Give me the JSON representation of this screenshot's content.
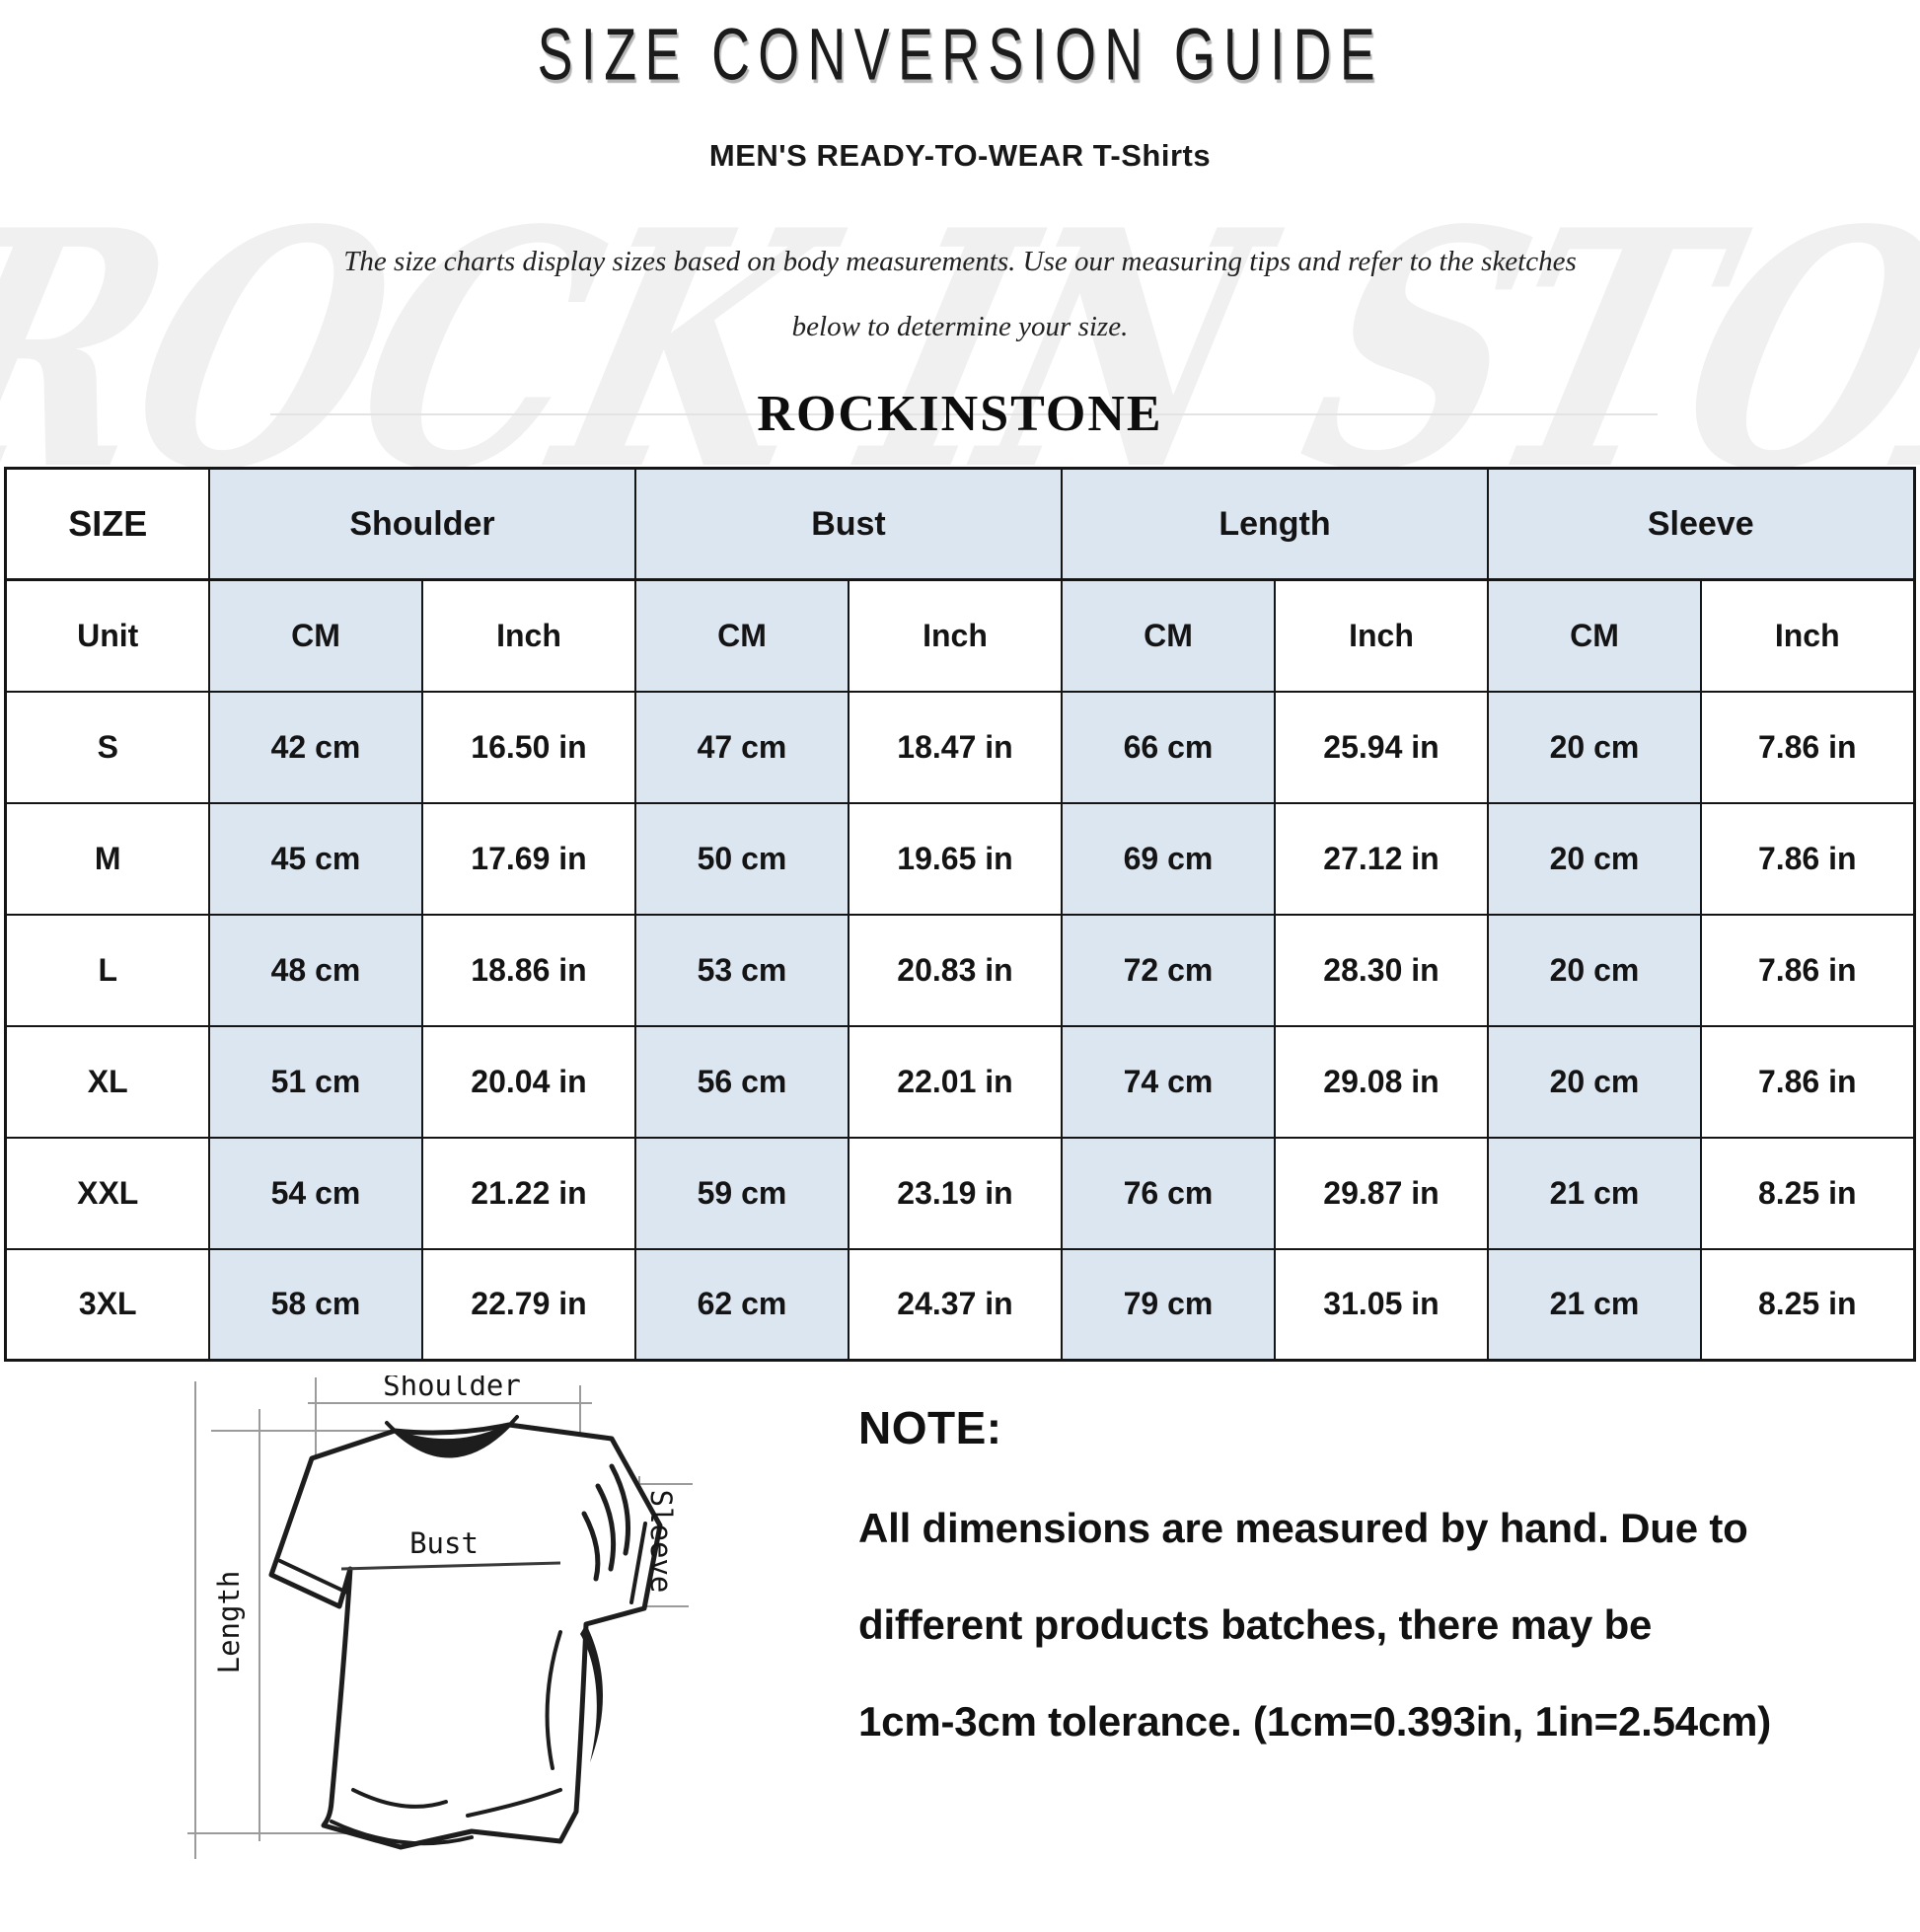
{
  "page": {
    "title": "SIZE CONVERSION GUIDE",
    "subtitle": "MEN'S READY-TO-WEAR T-Shirts",
    "intro_line1": "The size charts display sizes based on body measurements. Use our measuring tips and refer to the sketches",
    "intro_line2": "below to determine your size.",
    "brand": "ROCKINSTONE",
    "watermark": "ROCK IN STONE"
  },
  "table": {
    "size_header": "SIZE",
    "group_headers": [
      "Shoulder",
      "Bust",
      "Length",
      "Sleeve"
    ],
    "unit_label": "Unit",
    "unit_cells": [
      "CM",
      "Inch",
      "CM",
      "Inch",
      "CM",
      "Inch",
      "CM",
      "Inch"
    ]
  },
  "chart_data": {
    "type": "table",
    "title": "SIZE CONVERSION GUIDE",
    "subtitle": "MEN'S READY-TO-WEAR T-Shirts",
    "column_groups": [
      "Shoulder",
      "Bust",
      "Length",
      "Sleeve"
    ],
    "columns": [
      "SIZE",
      "Shoulder CM",
      "Shoulder Inch",
      "Bust CM",
      "Bust Inch",
      "Length CM",
      "Length Inch",
      "Sleeve CM",
      "Sleeve Inch"
    ],
    "rows": [
      [
        "S",
        "42 cm",
        "16.50 in",
        "47 cm",
        "18.47 in",
        "66 cm",
        "25.94 in",
        "20 cm",
        "7.86 in"
      ],
      [
        "M",
        "45 cm",
        "17.69 in",
        "50 cm",
        "19.65 in",
        "69 cm",
        "27.12 in",
        "20 cm",
        "7.86 in"
      ],
      [
        "L",
        "48 cm",
        "18.86 in",
        "53 cm",
        "20.83 in",
        "72 cm",
        "28.30 in",
        "20 cm",
        "7.86 in"
      ],
      [
        "XL",
        "51 cm",
        "20.04 in",
        "56 cm",
        "22.01 in",
        "74 cm",
        "29.08 in",
        "20 cm",
        "7.86 in"
      ],
      [
        "XXL",
        "54 cm",
        "21.22 in",
        "59 cm",
        "23.19 in",
        "76 cm",
        "29.87 in",
        "21 cm",
        "8.25 in"
      ],
      [
        "3XL",
        "58 cm",
        "22.79 in",
        "62 cm",
        "24.37 in",
        "79 cm",
        "31.05 in",
        "21 cm",
        "8.25 in"
      ]
    ]
  },
  "diagram": {
    "labels": {
      "shoulder": "Shoulder",
      "bust": "Bust",
      "length": "Length",
      "sleeve": "Sleeve"
    }
  },
  "note": {
    "heading": "NOTE:",
    "lines": [
      "All dimensions are measured by hand. Due to",
      "different products batches, there may be",
      "1cm-3cm tolerance. (1cm=0.393in, 1in=2.54cm)"
    ]
  },
  "colors": {
    "cell_fill": "#dce6f1",
    "border": "#151515",
    "watermark": "#ececec"
  }
}
